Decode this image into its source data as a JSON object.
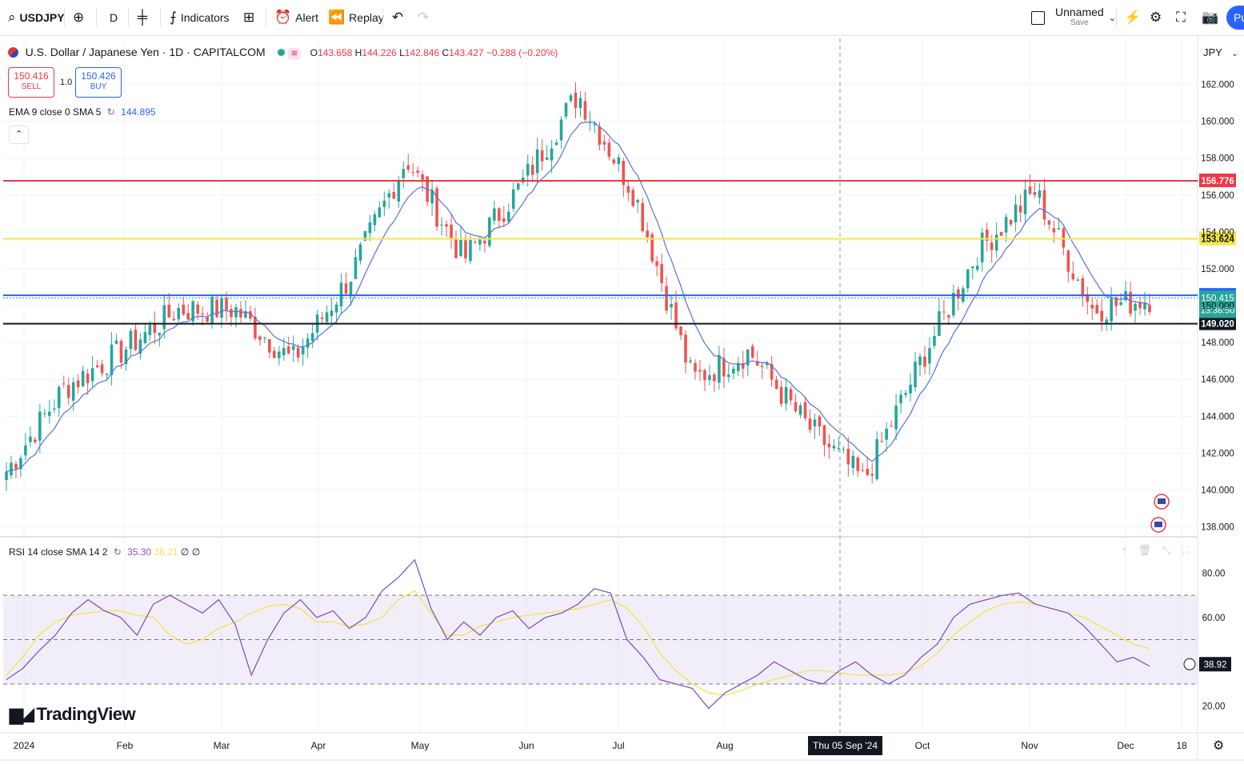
{
  "toolbar": {
    "symbol": "USDJPY",
    "interval": "D",
    "indicators_label": "Indicators",
    "alert_label": "Alert",
    "replay_label": "Replay",
    "layout_name": "Unnamed",
    "layout_save": "Save",
    "publish_label": "Pu"
  },
  "legend": {
    "title": "U.S. Dollar / Japanese Yen · 1D · CAPITALCOM",
    "ohlc_o_label": "O",
    "ohlc_o": "143.658",
    "ohlc_h_label": "H",
    "ohlc_h": "144.226",
    "ohlc_l_label": "L",
    "ohlc_l": "142.846",
    "ohlc_c_label": "C",
    "ohlc_c": "143.427",
    "ohlc_change": "−0.288 (−0.20%)",
    "sell_price": "150.416",
    "sell_label": "SELL",
    "spread": "1.0",
    "buy_price": "150.426",
    "buy_label": "BUY",
    "ema_label": "EMA 9 close 0 SMA 5",
    "ema_value": "144.895",
    "rsi_label": "RSI 14 close SMA 14 2",
    "rsi_value": "35.30",
    "rsi_sma_value": "36.21",
    "rsi_extra": "∅ ∅"
  },
  "currency": "JPY",
  "crosshair_date": "Thu 05 Sep '24",
  "brand": "TradingView",
  "colors": {
    "up": "#26a69a",
    "down": "#ef5350",
    "ema": "#5b6ee1",
    "rsi": "#7e57c2",
    "rsi_sma": "#f7e24a",
    "red_line": "#f23645",
    "yellow_line": "#f5e642",
    "blue_line": "#2962ff",
    "black_line": "#131722"
  },
  "chart_data": {
    "type": "candlestick",
    "symbol": "USDJPY",
    "timeframe": "1D",
    "x_labels": [
      "2024",
      "Feb",
      "Mar",
      "Apr",
      "May",
      "Jun",
      "Jul",
      "Aug",
      "Thu 05 Sep '24",
      "Oct",
      "Nov",
      "Dec",
      "18"
    ],
    "y_ticks": [
      "162.000",
      "160.000",
      "158.000",
      "156.000",
      "154.000",
      "152.000",
      "150.000",
      "148.000",
      "146.000",
      "144.000",
      "142.000",
      "140.000",
      "138.000"
    ],
    "ylim": [
      137.5,
      164.5
    ],
    "approx_close_path": [
      {
        "month": "2024",
        "close": 141.0
      },
      {
        "month": "Jan mid",
        "close": 145.5
      },
      {
        "month": "Feb",
        "close": 147.5
      },
      {
        "month": "Feb mid",
        "close": 149.8
      },
      {
        "month": "Mar",
        "close": 149.8
      },
      {
        "month": "Mar mid",
        "close": 147.0
      },
      {
        "month": "Apr",
        "close": 151.5
      },
      {
        "month": "Apr end",
        "close": 158.0
      },
      {
        "month": "May",
        "close": 152.5
      },
      {
        "month": "Jun",
        "close": 156.5
      },
      {
        "month": "Jul",
        "close": 161.5
      },
      {
        "month": "Jul mid",
        "close": 156.0
      },
      {
        "month": "Aug",
        "close": 146.0
      },
      {
        "month": "Aug mid",
        "close": 147.5
      },
      {
        "month": "Sep",
        "close": 143.5
      },
      {
        "month": "Sep mid",
        "close": 140.5
      },
      {
        "month": "Oct",
        "close": 147.0
      },
      {
        "month": "Oct end",
        "close": 153.0
      },
      {
        "month": "Nov mid",
        "close": 156.2
      },
      {
        "month": "Dec",
        "close": 149.8
      },
      {
        "month": "Dec now",
        "close": 150.4
      }
    ],
    "horizontal_lines": [
      {
        "price": 156.776,
        "label": "156.776",
        "color": "#f23645"
      },
      {
        "price": 153.624,
        "label": "153.624",
        "color": "#f5e642"
      },
      {
        "price": 150.562,
        "label": "150.562",
        "color": "#2962ff"
      },
      {
        "price": 149.02,
        "label": "149.020",
        "color": "#131722"
      }
    ],
    "last_price": {
      "price": "150.415",
      "countdown": "13:38:50"
    },
    "rsi": {
      "y_ticks": [
        "80.00",
        "60.00",
        "40.00",
        "20.00"
      ],
      "ylim": [
        8,
        96
      ],
      "bands": [
        70,
        50,
        30
      ],
      "last_value": "38.92",
      "path": [
        32,
        37,
        45,
        52,
        62,
        68,
        63,
        60,
        52,
        66,
        70,
        66,
        62,
        68,
        57,
        34,
        50,
        62,
        68,
        60,
        63,
        55,
        60,
        72,
        78,
        86,
        64,
        50,
        58,
        52,
        60,
        63,
        55,
        60,
        62,
        66,
        73,
        71,
        50,
        42,
        32,
        30,
        28,
        19,
        26,
        30,
        34,
        40,
        36,
        32,
        30,
        36,
        40,
        34,
        30,
        34,
        42,
        48,
        60,
        66,
        68,
        70,
        71,
        66,
        64,
        62,
        56,
        48,
        40,
        42,
        38
      ],
      "sma_path": [
        34,
        42,
        52,
        58,
        61,
        62,
        63,
        63,
        61,
        60,
        52,
        48,
        50,
        55,
        58,
        62,
        65,
        66,
        64,
        58,
        58,
        56,
        57,
        60,
        68,
        72,
        62,
        52,
        52,
        56,
        58,
        60,
        61,
        62,
        63,
        64,
        66,
        68,
        64,
        56,
        44,
        36,
        30,
        26,
        25,
        27,
        30,
        32,
        34,
        36,
        36,
        35,
        34,
        34,
        34,
        35,
        38,
        44,
        52,
        58,
        63,
        66,
        67,
        66,
        64,
        62,
        60,
        56,
        52,
        48,
        46
      ]
    }
  }
}
